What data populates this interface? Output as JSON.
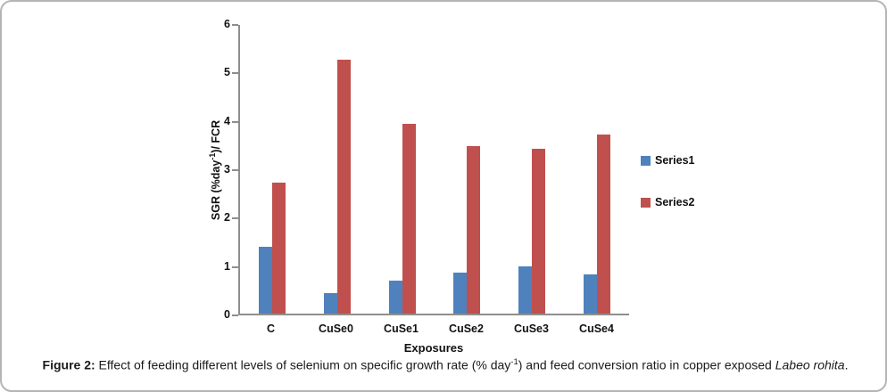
{
  "chart_data": {
    "type": "bar",
    "categories": [
      "C",
      "CuSe0",
      "CuSe1",
      "CuSe2",
      "CuSe3",
      "CuSe4"
    ],
    "series": [
      {
        "name": "Series1",
        "color": "#4F81BD",
        "values": [
          1.39,
          0.43,
          0.69,
          0.86,
          0.99,
          0.81
        ]
      },
      {
        "name": "Series2",
        "color": "#C0504D",
        "values": [
          2.73,
          5.28,
          3.94,
          3.49,
          3.42,
          3.73
        ]
      }
    ],
    "title": "",
    "xlabel": "Exposures",
    "ylabel": "SGR (%day⁻¹)/ FCR",
    "ylabel_parts": {
      "pre": "SGR (%day",
      "sup": "-1",
      "post": ")/ FCR"
    },
    "ylim": [
      0,
      6
    ],
    "ytick_step": 1,
    "ytick_labels": [
      "0",
      "1",
      "2",
      "3",
      "4",
      "5",
      "6"
    ],
    "grid": false,
    "legend_position": "right",
    "axis_color": "#8e8e8e"
  },
  "caption": {
    "figure_label": "Figure 2:",
    "text1": " Effect of feeding different levels of selenium on specific growth rate (% day",
    "sup": "-1",
    "text2": ") and feed conversion ratio in copper exposed ",
    "species": "Labeo rohita",
    "text3": "."
  }
}
